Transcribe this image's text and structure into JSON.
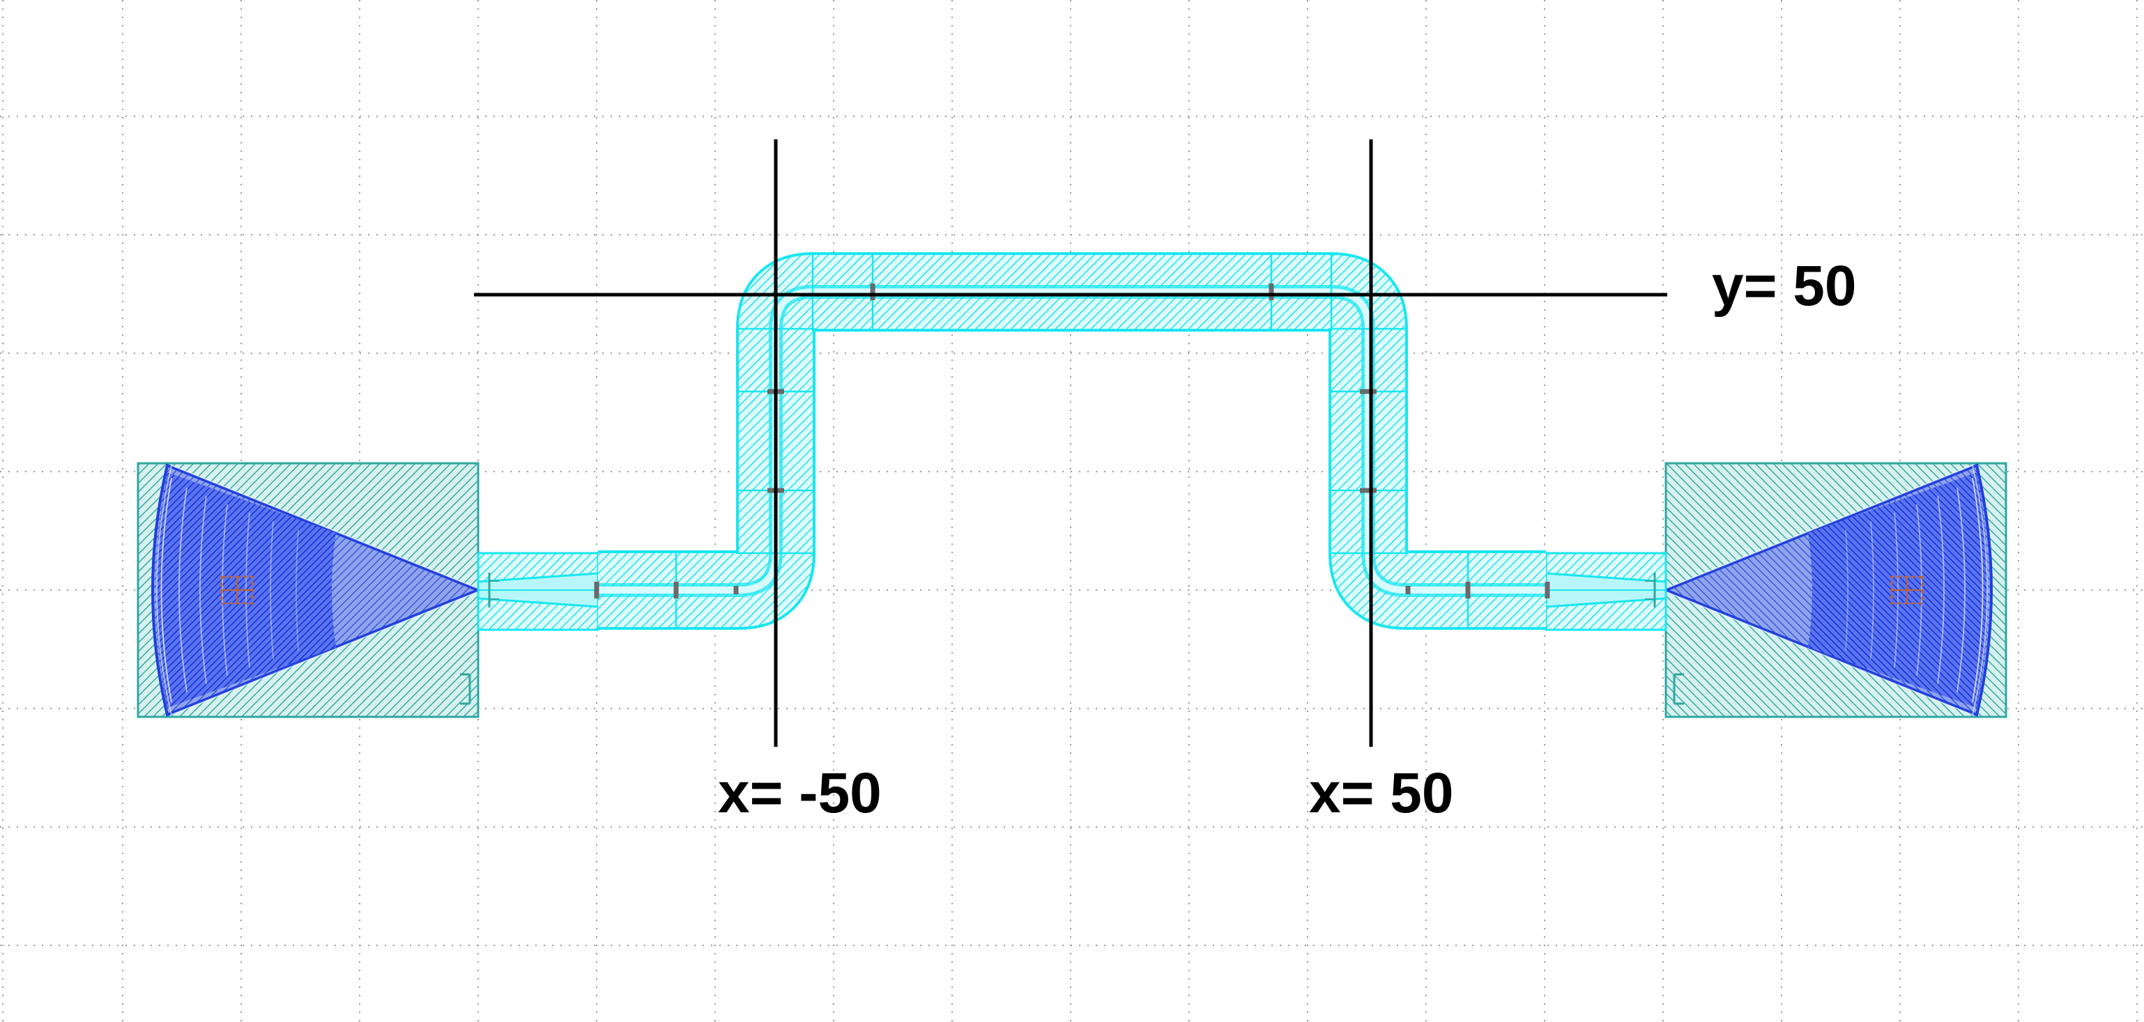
{
  "diagram": {
    "labels": {
      "y_line": "y= 50",
      "x_left": "x= -50",
      "x_right": "x= 50"
    }
  },
  "colors": {
    "background": "#ffffff",
    "grid_dots": "#9a9a9a",
    "pad_border": "#2fa7a0",
    "pad_fill": "#8fd3cf",
    "taper_fill": "#1f3fdd",
    "taper_dark": "#0a1fc9",
    "waveguide_border": "#19e6f0",
    "waveguide_fill": "#9cf3f6",
    "port_marker": "#6a6a6a",
    "anchor_box": "#c0602a",
    "reference_line": "#000000"
  },
  "icons": {
    "left_pad": "grating-coupler-icon",
    "right_pad": "grating-coupler-icon"
  }
}
